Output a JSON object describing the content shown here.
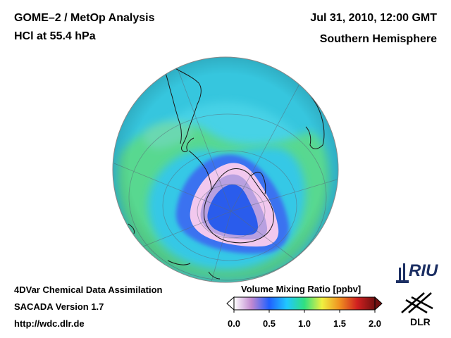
{
  "header": {
    "title_line1": "GOME–2 / MetOp Analysis",
    "title_line2": "HCl at 55.4 hPa",
    "date": "Jul 31, 2010, 12:00 GMT",
    "region": "Southern Hemisphere"
  },
  "footer": {
    "line1": "4DVar Chemical Data Assimilation",
    "line2": "SACADA Version 1.7",
    "line3": "http://wdc.dlr.de"
  },
  "colorbar": {
    "title": "Volume Mixing Ratio [ppbv]",
    "ticks": [
      "0.0",
      "0.5",
      "1.0",
      "1.5",
      "2.0"
    ],
    "tick_values": [
      0.0,
      0.5,
      1.0,
      1.5,
      2.0
    ],
    "range": [
      0.0,
      2.0
    ],
    "colors": [
      "#ffffff",
      "#c088d0",
      "#2060ff",
      "#20c8ff",
      "#30e080",
      "#f0f040",
      "#f09020",
      "#d02020",
      "#701010"
    ]
  },
  "logos": {
    "riu": "RIU",
    "dlr": "DLR"
  },
  "map": {
    "projection": "orthographic",
    "hemisphere": "south",
    "background_color": "#38c8e0",
    "vortex_low_color": "#2058e8",
    "collar_color": "#f0c8f0",
    "ring_color": "#30d870"
  }
}
